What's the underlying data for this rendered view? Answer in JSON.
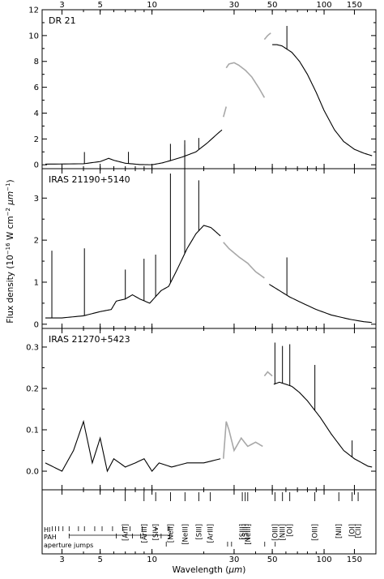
{
  "chart_data": {
    "type": "line",
    "shared_x": {
      "label": "Wavelength (μm)",
      "label_parts": [
        "Wavelength (",
        "μm",
        ")"
      ],
      "scale": "log",
      "range": [
        2.3,
        200
      ],
      "top_ticks": [
        3,
        5,
        10,
        30,
        50,
        100,
        150
      ],
      "bottom_ticks": [
        3,
        5,
        10,
        30,
        50,
        100,
        150
      ]
    },
    "ylabel": "Flux density (10^-16 W cm^-2 μm^-1)",
    "ylabel_parts": [
      "Flux density (10",
      "−16",
      " W cm",
      "−2",
      " μm",
      "−1",
      ")"
    ],
    "panels": [
      {
        "name": "DR 21",
        "ylim": [
          -0.3,
          12
        ],
        "yticks": [
          0,
          2,
          4,
          6,
          8,
          10,
          12
        ],
        "segments": [
          {
            "style": "black",
            "points": [
              [
                2.4,
                0.05
              ],
              [
                4,
                0.08
              ],
              [
                5,
                0.25
              ],
              [
                5.6,
                0.5
              ],
              [
                6,
                0.35
              ],
              [
                7,
                0.12
              ],
              [
                8.5,
                0.02
              ],
              [
                10,
                0.0
              ],
              [
                11.5,
                0.15
              ],
              [
                13,
                0.35
              ],
              [
                15,
                0.6
              ],
              [
                18,
                1.0
              ],
              [
                21,
                1.7
              ],
              [
                24,
                2.4
              ],
              [
                25.5,
                2.7
              ]
            ]
          },
          {
            "style": "gray",
            "points": [
              [
                26,
                3.7
              ],
              [
                27,
                4.5
              ]
            ]
          },
          {
            "style": "gray",
            "points": [
              [
                27,
                7.5
              ],
              [
                28,
                7.8
              ],
              [
                30,
                7.9
              ],
              [
                32,
                7.7
              ],
              [
                35,
                7.3
              ],
              [
                38,
                6.8
              ],
              [
                42,
                5.9
              ],
              [
                45,
                5.2
              ]
            ]
          },
          {
            "style": "gray",
            "points": [
              [
                45,
                9.7
              ],
              [
                47,
                10.0
              ],
              [
                49,
                10.2
              ]
            ]
          },
          {
            "style": "black",
            "points": [
              [
                50,
                9.3
              ],
              [
                53,
                9.3
              ],
              [
                57,
                9.2
              ],
              [
                60,
                9.0
              ],
              [
                65,
                8.7
              ],
              [
                72,
                8.0
              ],
              [
                80,
                7.0
              ],
              [
                90,
                5.6
              ],
              [
                100,
                4.2
              ],
              [
                115,
                2.7
              ],
              [
                130,
                1.8
              ],
              [
                150,
                1.2
              ],
              [
                170,
                0.9
              ],
              [
                190,
                0.7
              ]
            ]
          }
        ],
        "emission_lines": [
          [
            4.05,
            0.9
          ],
          [
            7.3,
            0.9
          ],
          [
            12.8,
            1.3
          ],
          [
            15.5,
            0.9
          ],
          [
            18.7,
            0.9
          ],
          [
            60.8,
            1.8
          ]
        ]
      },
      {
        "name": "IRAS 21190+5140",
        "ylim": [
          -0.1,
          3.7
        ],
        "yticks": [
          0,
          1,
          2,
          3
        ],
        "segments": [
          {
            "style": "black",
            "points": [
              [
                2.4,
                0.15
              ],
              [
                3,
                0.15
              ],
              [
                4,
                0.2
              ],
              [
                5,
                0.3
              ],
              [
                5.8,
                0.35
              ],
              [
                6.2,
                0.55
              ],
              [
                7,
                0.6
              ],
              [
                7.7,
                0.7
              ],
              [
                8.5,
                0.6
              ],
              [
                9.7,
                0.5
              ],
              [
                11.3,
                0.8
              ],
              [
                12.5,
                0.9
              ],
              [
                14,
                1.3
              ],
              [
                16,
                1.8
              ],
              [
                18,
                2.15
              ],
              [
                20,
                2.35
              ],
              [
                22,
                2.3
              ],
              [
                25,
                2.1
              ]
            ]
          },
          {
            "style": "gray",
            "points": [
              [
                26,
                1.95
              ],
              [
                28,
                1.8
              ],
              [
                32,
                1.6
              ],
              [
                36,
                1.45
              ],
              [
                40,
                1.25
              ],
              [
                45,
                1.1
              ]
            ]
          },
          {
            "style": "black",
            "points": [
              [
                48,
                0.95
              ],
              [
                55,
                0.8
              ],
              [
                63,
                0.65
              ],
              [
                75,
                0.5
              ],
              [
                90,
                0.35
              ],
              [
                110,
                0.22
              ],
              [
                140,
                0.12
              ],
              [
                170,
                0.06
              ],
              [
                190,
                0.04
              ]
            ]
          }
        ],
        "emission_lines": [
          [
            2.62,
            1.6
          ],
          [
            4.05,
            1.6
          ],
          [
            7.0,
            0.7
          ],
          [
            8.99,
            1.0
          ],
          [
            10.5,
            1.0
          ],
          [
            12.8,
            2.6
          ],
          [
            15.5,
            2.7
          ],
          [
            18.7,
            1.2
          ],
          [
            60.8,
            0.9
          ]
        ]
      },
      {
        "name": "IRAS 21270+5423",
        "ylim": [
          -0.045,
          0.345
        ],
        "yticks": [
          0.0,
          0.1,
          0.2,
          0.3
        ],
        "segments": [
          {
            "style": "black",
            "points": [
              [
                2.4,
                0.02
              ],
              [
                3,
                0.0
              ],
              [
                3.5,
                0.05
              ],
              [
                4,
                0.12
              ],
              [
                4.5,
                0.02
              ],
              [
                5,
                0.08
              ],
              [
                5.5,
                0.0
              ],
              [
                6,
                0.03
              ],
              [
                7,
                0.01
              ],
              [
                8,
                0.02
              ],
              [
                9,
                0.03
              ],
              [
                10,
                0.0
              ],
              [
                11,
                0.02
              ],
              [
                13,
                0.01
              ],
              [
                16,
                0.02
              ],
              [
                20,
                0.02
              ],
              [
                25,
                0.03
              ]
            ]
          },
          {
            "style": "gray",
            "points": [
              [
                26,
                0.03
              ],
              [
                27,
                0.12
              ],
              [
                28,
                0.1
              ],
              [
                30,
                0.05
              ],
              [
                33,
                0.08
              ],
              [
                36,
                0.06
              ],
              [
                40,
                0.07
              ],
              [
                44,
                0.06
              ]
            ]
          },
          {
            "style": "gray",
            "points": [
              [
                45,
                0.23
              ],
              [
                47,
                0.24
              ],
              [
                50,
                0.23
              ]
            ]
          },
          {
            "style": "black",
            "points": [
              [
                51,
                0.21
              ],
              [
                55,
                0.215
              ],
              [
                60,
                0.21
              ],
              [
                65,
                0.205
              ],
              [
                72,
                0.19
              ],
              [
                80,
                0.17
              ],
              [
                95,
                0.13
              ],
              [
                110,
                0.09
              ],
              [
                130,
                0.05
              ],
              [
                150,
                0.03
              ],
              [
                180,
                0.012
              ],
              [
                190,
                0.01
              ]
            ]
          }
        ],
        "emission_lines": [
          [
            51.8,
            0.1
          ],
          [
            57.3,
            0.09
          ],
          [
            63.2,
            0.1
          ],
          [
            88.4,
            0.11
          ],
          [
            145.5,
            0.04
          ]
        ]
      }
    ],
    "annotation_lines": [
      {
        "label": "ArII",
        "x": 6.99
      },
      {
        "label": "ArIII",
        "x": 8.99
      },
      {
        "label": "SIV",
        "x": 10.51
      },
      {
        "label": "NeII",
        "x": 12.81
      },
      {
        "label": "NeIII",
        "x": 15.55
      },
      {
        "label": "SIII",
        "x": 18.71
      },
      {
        "label": "ArIII",
        "x": 21.83
      },
      {
        "label": "SIII",
        "x": 33.48
      },
      {
        "label": "SiII",
        "x": 34.81
      },
      {
        "label": "NeIII",
        "x": 36.01
      },
      {
        "label": "OIII",
        "x": 51.81
      },
      {
        "label": "NIII",
        "x": 57.32
      },
      {
        "label": "OI",
        "x": 63.18
      },
      {
        "label": "OIII",
        "x": 88.36
      },
      {
        "label": "NII",
        "x": 121.8
      },
      {
        "label": "OI",
        "x": 145.5
      },
      {
        "label": "CII",
        "x": 157.7
      }
    ],
    "marker_rows": [
      {
        "label": "HI",
        "x": [
          2.63,
          2.75,
          2.87,
          3.04,
          3.3,
          3.74,
          4.05,
          4.65,
          5.13,
          5.9,
          6.77,
          7.46,
          8.76,
          10.5,
          12.37,
          12.6
        ]
      },
      {
        "label": "PAH",
        "x": [
          3.3,
          6.2,
          7.7,
          8.6,
          11.3,
          12.7
        ],
        "span": [
          3.3,
          12.7
        ]
      },
      {
        "label": "aperture jumps",
        "x": [
          12.1,
          27.5,
          29,
          45.2,
          52
        ]
      }
    ]
  }
}
